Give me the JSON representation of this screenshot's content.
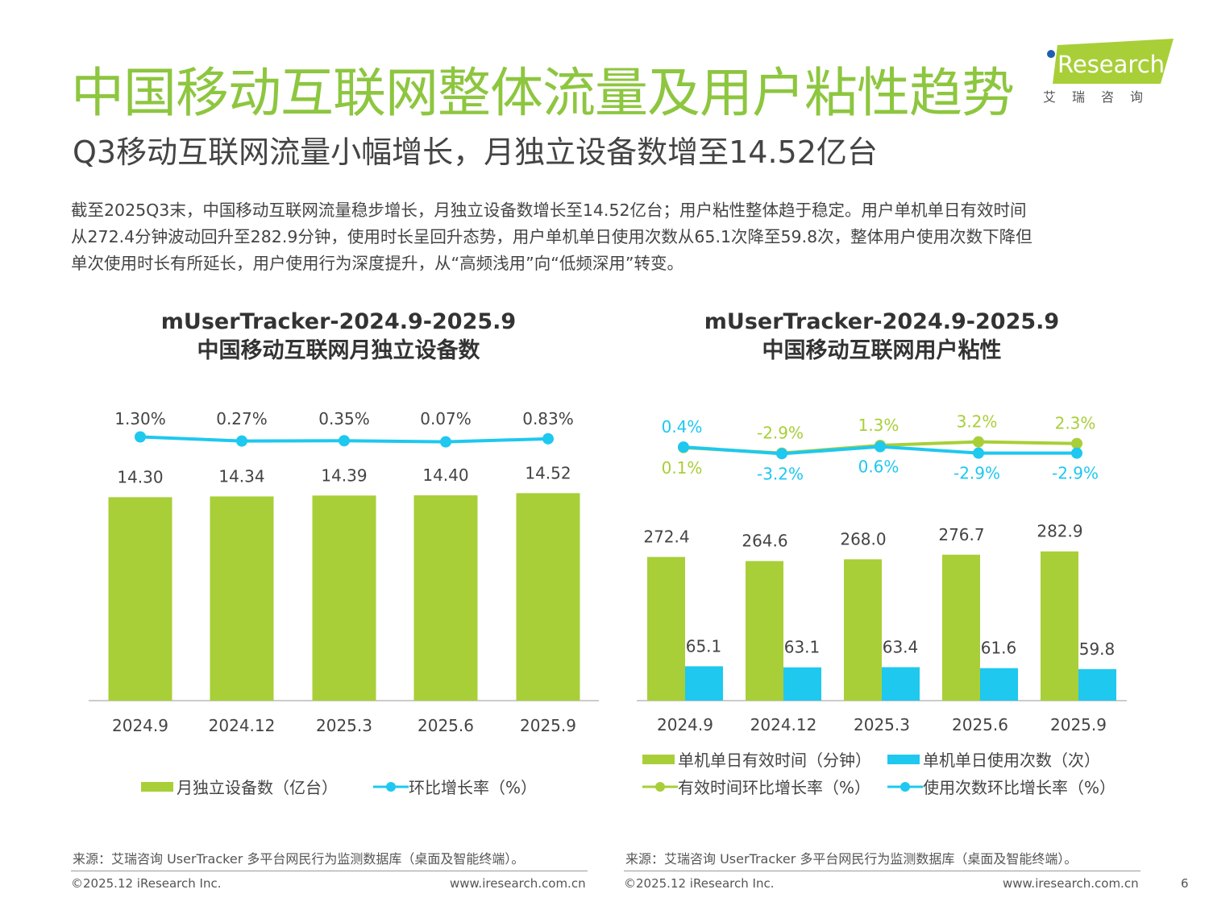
{
  "title": "中国移动互联网整体流量及用户粘性趋势",
  "subtitle": "Q3移动互联网流量小幅增长，月独立设备数增至14.52亿台",
  "paragraph": [
    "截至2025Q3末，中国移动互联网流量稳步增长，月独立设备数增长至14.52亿台；用户粘性整体趋于稳定。用户单机单日有效时间",
    "从272.4分钟波动回升至282.9分钟，使用时长呈回升态势，用户单机单日使用次数从65.1次降至59.8次，整体用户使用次数下降但",
    "单次使用时长有所延长，用户使用行为深度提升，从“高频浅用”向“低频深用”转变。"
  ],
  "logo": {
    "text": "iResearch",
    "cn": "艾 瑞 咨 询"
  },
  "colors": {
    "green": "#a8cf38",
    "blue": "#1ec8ef",
    "title_green": "#8dc63f"
  },
  "chart_data": [
    {
      "type": "bar",
      "title": [
        "mUserTracker-2024.9-2025.9",
        "中国移动互联网月独立设备数"
      ],
      "categories": [
        "2024.9",
        "2024.12",
        "2025.3",
        "2025.6",
        "2025.9"
      ],
      "series": [
        {
          "name": "月独立设备数（亿台）",
          "type": "bar",
          "values": [
            14.3,
            14.34,
            14.39,
            14.4,
            14.52
          ],
          "labels": [
            "14.30",
            "14.34",
            "14.39",
            "14.40",
            "14.52"
          ]
        },
        {
          "name": "环比增长率（%）",
          "type": "line",
          "values": [
            1.3,
            0.27,
            0.35,
            0.07,
            0.83
          ],
          "labels": [
            "1.30%",
            "0.27%",
            "0.35%",
            "0.07%",
            "0.83%"
          ]
        }
      ]
    },
    {
      "type": "bar",
      "title": [
        "mUserTracker-2024.9-2025.9",
        "中国移动互联网用户粘性"
      ],
      "categories": [
        "2024.9",
        "2024.12",
        "2025.3",
        "2025.6",
        "2025.9"
      ],
      "series": [
        {
          "name": "单机单日有效时间（分钟）",
          "type": "bar",
          "values": [
            272.4,
            264.6,
            268.0,
            276.7,
            282.9
          ],
          "labels": [
            "272.4",
            "264.6",
            "268.0",
            "276.7",
            "282.9"
          ]
        },
        {
          "name": "单机单日使用次数（次）",
          "type": "bar",
          "values": [
            65.1,
            63.1,
            63.4,
            61.6,
            59.8
          ],
          "labels": [
            "65.1",
            "63.1",
            "63.4",
            "61.6",
            "59.8"
          ]
        },
        {
          "name": "有效时间环比增长率（%）",
          "type": "line",
          "values": [
            0.1,
            -2.9,
            1.3,
            3.2,
            2.3
          ],
          "labels": [
            "0.1%",
            "-2.9%",
            "1.3%",
            "3.2%",
            "2.3%"
          ]
        },
        {
          "name": "使用次数环比增长率（%）",
          "type": "line",
          "values": [
            0.4,
            -3.2,
            0.6,
            -2.9,
            -2.9
          ],
          "labels": [
            "0.4%",
            "-3.2%",
            "0.6%",
            "-2.9%",
            "-2.9%"
          ]
        }
      ]
    }
  ],
  "footer": {
    "source": "来源：艾瑞咨询 UserTracker 多平台网民行为监测数据库（桌面及智能终端）。",
    "copyright": "©2025.12 iResearch Inc.",
    "url": "www.iresearch.com.cn",
    "page": "6"
  }
}
